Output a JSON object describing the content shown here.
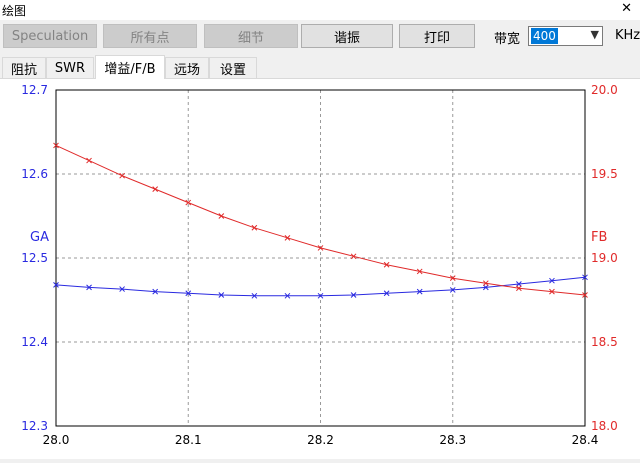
{
  "window": {
    "title": "绘图",
    "close_glyph": "✕"
  },
  "toolbar": {
    "speculation": "Speculation",
    "all_points": "所有点",
    "details": "细节",
    "resonance": "谐振",
    "print": "打印",
    "bandwidth_label": "带宽",
    "bandwidth_value": "400",
    "bandwidth_unit": "KHz"
  },
  "tabs": [
    "阻抗",
    "SWR",
    "增益/F/B",
    "远场",
    "设置"
  ],
  "active_tab": 2,
  "colors": {
    "ga": "#2a2ae0",
    "fb": "#e02a2a",
    "grid": "#9a9a9a"
  },
  "chart_data": {
    "type": "line",
    "x": [
      28.0,
      28.025,
      28.05,
      28.075,
      28.1,
      28.125,
      28.15,
      28.175,
      28.2,
      28.225,
      28.25,
      28.275,
      28.3,
      28.325,
      28.35,
      28.375,
      28.4
    ],
    "x_ticks": [
      "28.0",
      "28.1",
      "28.2",
      "28.3",
      "28.4"
    ],
    "xlim": [
      28.0,
      28.4
    ],
    "series": [
      {
        "name": "GA",
        "axis": "left",
        "color": "#2a2ae0",
        "values": [
          12.468,
          12.465,
          12.463,
          12.46,
          12.458,
          12.456,
          12.455,
          12.455,
          12.455,
          12.456,
          12.458,
          12.46,
          12.462,
          12.465,
          12.469,
          12.473,
          12.477
        ]
      },
      {
        "name": "FB",
        "axis": "right",
        "color": "#e02a2a",
        "values": [
          19.67,
          19.58,
          19.49,
          19.41,
          19.33,
          19.25,
          19.18,
          19.12,
          19.06,
          19.01,
          18.96,
          18.92,
          18.88,
          18.85,
          18.82,
          18.8,
          18.78
        ]
      }
    ],
    "y_left": {
      "label": "GA",
      "ylim": [
        12.3,
        12.7
      ],
      "ticks": [
        "12.3",
        "12.4",
        "12.5",
        "12.6",
        "12.7"
      ]
    },
    "y_right": {
      "label": "FB",
      "ylim": [
        18.0,
        20.0
      ],
      "ticks": [
        "18.0",
        "18.5",
        "19.0",
        "19.5",
        "20.0"
      ]
    },
    "grid": true
  }
}
